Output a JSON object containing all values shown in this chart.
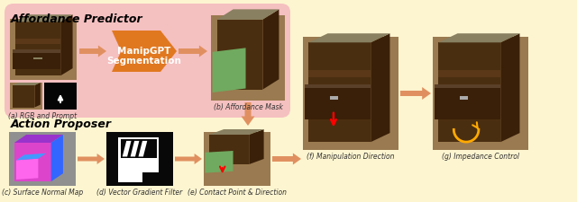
{
  "bg_color": "#fdf5d0",
  "pink_bg": "#f5c0c0",
  "orange_dark": "#e07820",
  "orange_light": "#e8a878",
  "orange_arrow": "#e09060",
  "cabinet_body": "#4a2e10",
  "cabinet_side": "#3a2008",
  "cabinet_top": "#888060",
  "cabinet_bg": "#9a7a50",
  "green_mask": "#70aa60",
  "purple_c": "#cc44cc",
  "blue_c": "#4488ff",
  "pink_c": "#ff44aa",
  "magenta_c": "#cc00aa",
  "title_affordance": "Affordance Predictor",
  "title_action": "Action Proposer",
  "label_a": "(a) RGB and Prompt",
  "label_b": "(b) Affordance Mask",
  "label_c": "(c) Surface Normal Map",
  "label_d": "(d) Vector Gradient Filter",
  "label_e": "(e) Contact Point & Direction",
  "label_f": "(f) Manipulation Direction",
  "label_g": "(g) Impedance Control",
  "manipgpt_line1": "ManipGPT",
  "manipgpt_line2": "Segmentation",
  "label_fs": 5.5,
  "title_fs": 9
}
